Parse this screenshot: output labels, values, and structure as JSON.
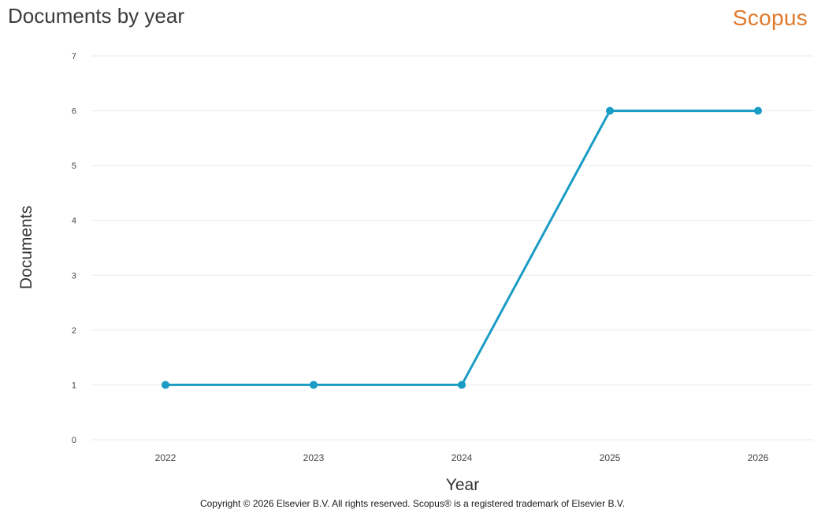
{
  "header": {
    "brand": "Scopus"
  },
  "footer": {
    "copyright": "Copyright © 2026 Elsevier B.V. All rights reserved. Scopus® is a registered trademark of Elsevier B.V."
  },
  "colors": {
    "line": "#1a9cc4",
    "brand": "#e07a2c",
    "grid": "#e9e9e9",
    "tick": "#444444",
    "axis_label": "#333333"
  },
  "chart_data": {
    "type": "line",
    "title": "Documents by year",
    "xlabel": "Year",
    "ylabel": "Documents",
    "categories": [
      "2022",
      "2023",
      "2024",
      "2025",
      "2026"
    ],
    "values": [
      1,
      1,
      1,
      6,
      6
    ],
    "ylim": [
      0,
      7
    ],
    "yticks": [
      "0",
      "1",
      "2",
      "3",
      "4",
      "5",
      "6",
      "7"
    ],
    "grid": true,
    "legend": "none"
  }
}
